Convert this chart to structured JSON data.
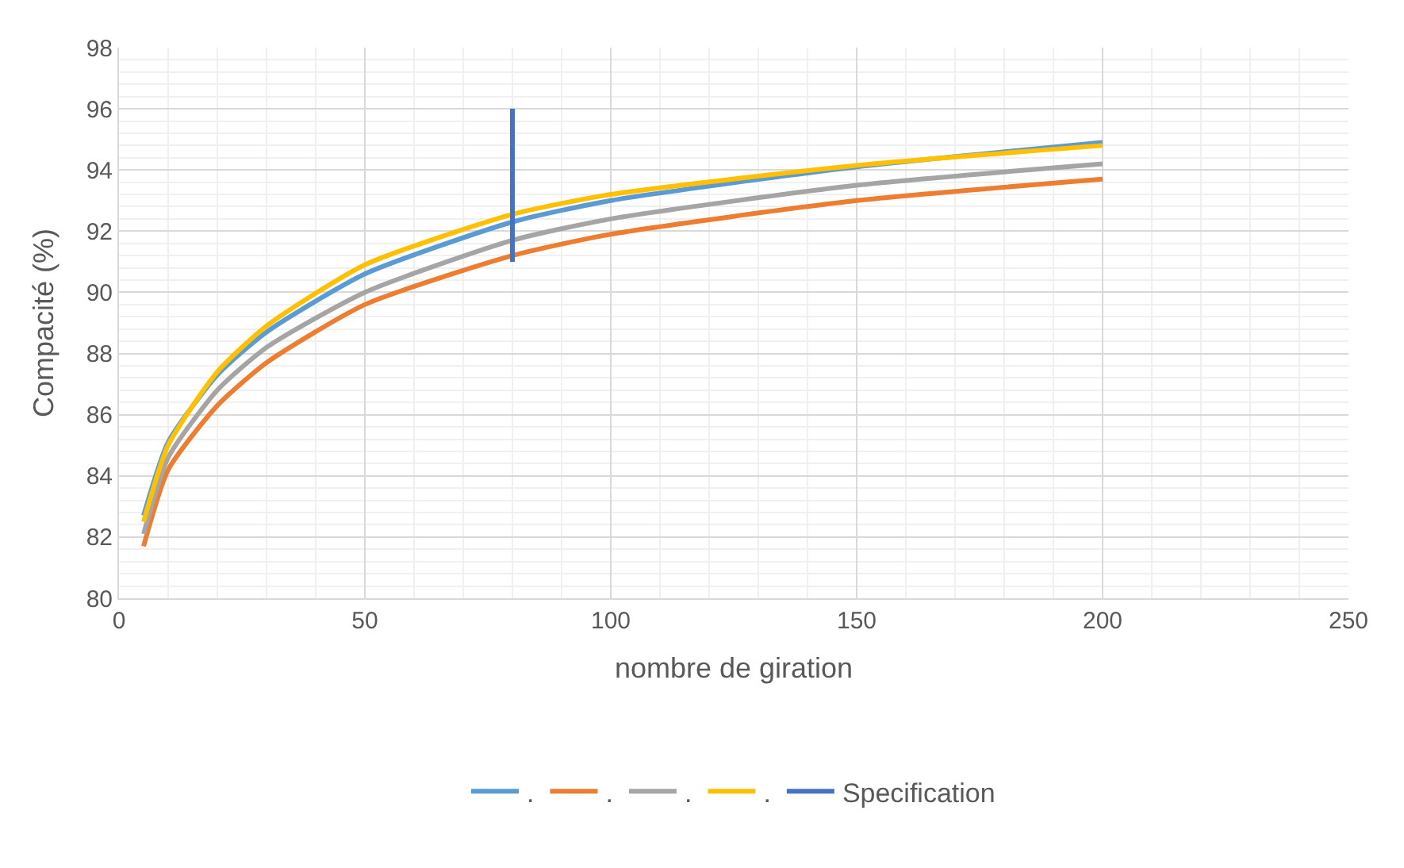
{
  "chart_data": {
    "type": "line",
    "xlabel": "nombre de giration",
    "ylabel": "Compacité (%)",
    "x": [
      5,
      10,
      20,
      30,
      50,
      80,
      100,
      150,
      200
    ],
    "xlim": [
      0,
      250
    ],
    "xticks": [
      0,
      50,
      100,
      150,
      200,
      250
    ],
    "ylim": [
      80,
      98
    ],
    "yticks": [
      80,
      82,
      84,
      86,
      88,
      90,
      92,
      94,
      96,
      98
    ],
    "grid": true,
    "legend": "bottom",
    "marker": "none",
    "series": [
      {
        "name": ".",
        "color": "#5b9bd5",
        "values": [
          82.7,
          85.1,
          87.3,
          88.7,
          90.6,
          92.3,
          93.0,
          94.1,
          94.9
        ]
      },
      {
        "name": ".",
        "color": "#ed7d31",
        "values": [
          81.7,
          84.2,
          86.3,
          87.7,
          89.6,
          91.2,
          91.9,
          93.0,
          93.7
        ]
      },
      {
        "name": ".",
        "color": "#a5a5a5",
        "values": [
          82.1,
          84.6,
          86.8,
          88.2,
          90.0,
          91.7,
          92.4,
          93.5,
          94.2
        ]
      },
      {
        "name": ".",
        "color": "#ffc000",
        "values": [
          82.5,
          85.0,
          87.4,
          88.9,
          90.9,
          92.55,
          93.2,
          94.15,
          94.8
        ]
      },
      {
        "name": "Specification",
        "color": "#4472c4",
        "x": [
          80,
          80
        ],
        "values": [
          91,
          96
        ]
      }
    ]
  }
}
